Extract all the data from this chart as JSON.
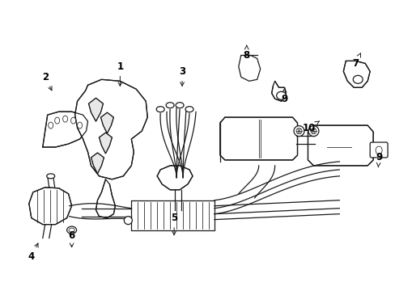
{
  "background_color": "#ffffff",
  "line_color": "#1a1a1a",
  "text_color": "#000000",
  "figsize": [
    4.89,
    3.6
  ],
  "dpi": 100,
  "lw": 0.9,
  "lw_thin": 0.55,
  "lw_thick": 1.1
}
